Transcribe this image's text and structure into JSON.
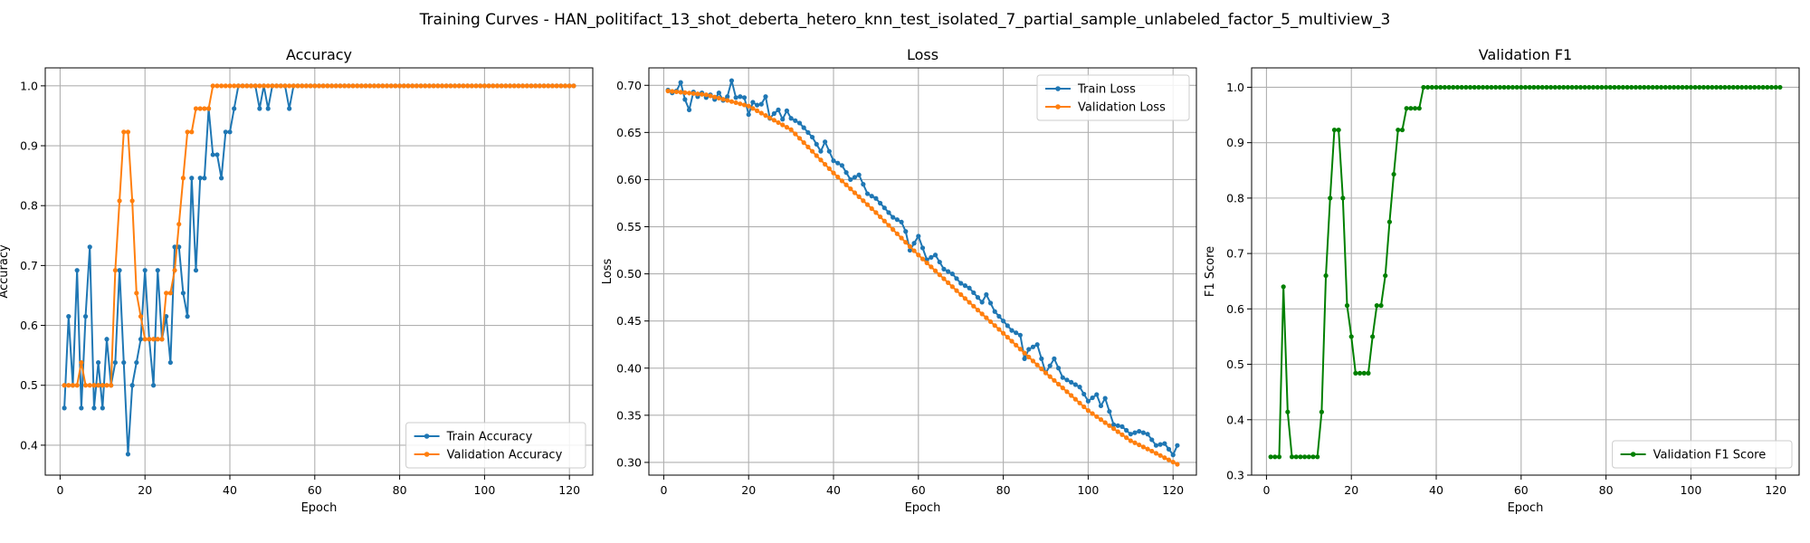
{
  "figure": {
    "title": "Training Curves - HAN_politifact_13_shot_deberta_hetero_knn_test_isolated_7_partial_sample_unlabeled_factor_5_multiview_3"
  },
  "colors": {
    "train": "#1f77b4",
    "validation": "#ff7f0e",
    "f1": "#008000",
    "grid": "#b0b0b0"
  },
  "chart_data": [
    {
      "type": "line",
      "title": "Accuracy",
      "xlabel": "Epoch",
      "ylabel": "Accuracy",
      "xlim": [
        -3.5,
        125.5
      ],
      "ylim": [
        0.35,
        1.03
      ],
      "xticks": [
        0,
        20,
        40,
        60,
        80,
        100,
        120
      ],
      "xtick_labels": [
        "0",
        "20",
        "40",
        "60",
        "80",
        "100",
        "120"
      ],
      "yticks": [
        0.4,
        0.5,
        0.6,
        0.7,
        0.8,
        0.9,
        1.0
      ],
      "ytick_labels": [
        "0.4",
        "0.5",
        "0.6",
        "0.7",
        "0.8",
        "0.9",
        "1.0"
      ],
      "grid": true,
      "legend_position": "lower-right",
      "series": [
        {
          "name": "Train Accuracy",
          "color": "#1f77b4",
          "x_start": 1,
          "x_end": 121,
          "values_head": [
            0.462,
            0.615,
            0.5,
            0.692,
            0.462,
            0.615,
            0.731,
            0.462,
            0.538,
            0.462,
            0.577,
            0.5,
            0.538,
            0.692,
            0.538,
            0.385,
            0.5,
            0.538,
            0.577,
            0.692,
            0.577,
            0.5,
            0.692,
            0.577,
            0.615,
            0.538,
            0.731,
            0.731,
            0.654,
            0.615,
            0.846,
            0.692,
            0.846,
            0.846,
            0.962,
            0.885,
            0.885,
            0.846,
            0.923,
            0.923,
            0.962,
            1.0,
            1.0,
            1.0,
            1.0,
            1.0,
            0.962,
            1.0,
            0.962,
            1.0,
            1.0,
            1.0,
            1.0,
            0.962
          ],
          "tail_value": 1.0
        },
        {
          "name": "Validation Accuracy",
          "color": "#ff7f0e",
          "x_start": 1,
          "x_end": 121,
          "values_head": [
            0.5,
            0.5,
            0.5,
            0.5,
            0.538,
            0.5,
            0.5,
            0.5,
            0.5,
            0.5,
            0.5,
            0.5,
            0.692,
            0.808,
            0.923,
            0.923,
            0.808,
            0.654,
            0.615,
            0.577,
            0.577,
            0.577,
            0.577,
            0.577,
            0.654,
            0.654,
            0.692,
            0.769,
            0.846,
            0.923,
            0.923,
            0.962,
            0.962,
            0.962,
            0.962,
            1.0
          ],
          "tail_value": 1.0
        }
      ]
    },
    {
      "type": "line",
      "title": "Loss",
      "xlabel": "Epoch",
      "ylabel": "Loss",
      "xlim": [
        -3.5,
        125.5
      ],
      "ylim": [
        0.2865,
        0.7185
      ],
      "xticks": [
        0,
        20,
        40,
        60,
        80,
        100,
        120
      ],
      "xtick_labels": [
        "0",
        "20",
        "40",
        "60",
        "80",
        "100",
        "120"
      ],
      "yticks": [
        0.3,
        0.35,
        0.4,
        0.45,
        0.5,
        0.55,
        0.6,
        0.65,
        0.7
      ],
      "ytick_labels": [
        "0.30",
        "0.35",
        "0.40",
        "0.45",
        "0.50",
        "0.55",
        "0.60",
        "0.65",
        "0.70"
      ],
      "grid": true,
      "legend_position": "upper-right",
      "series": [
        {
          "name": "Train Loss",
          "color": "#1f77b4",
          "x": [
            1,
            2,
            3,
            4,
            5,
            6,
            7,
            8,
            9,
            10,
            11,
            12,
            13,
            14,
            15,
            16,
            17,
            18,
            19,
            20,
            21,
            22,
            23,
            24,
            25,
            26,
            27,
            28,
            29,
            30,
            32,
            35,
            37,
            38,
            40,
            42,
            44,
            46,
            48,
            50,
            52,
            54,
            56,
            57,
            58,
            60,
            62,
            64,
            66,
            68,
            70,
            72,
            74,
            75,
            76,
            78,
            80,
            82,
            84,
            85,
            86,
            88,
            90,
            92,
            94,
            96,
            98,
            100,
            102,
            103,
            104,
            106,
            108,
            110,
            112,
            114,
            116,
            118,
            120,
            121
          ],
          "y": [
            0.695,
            0.692,
            0.694,
            0.703,
            0.685,
            0.674,
            0.693,
            0.688,
            0.692,
            0.687,
            0.69,
            0.685,
            0.692,
            0.684,
            0.688,
            0.705,
            0.687,
            0.688,
            0.687,
            0.669,
            0.682,
            0.679,
            0.68,
            0.688,
            0.665,
            0.67,
            0.674,
            0.664,
            0.673,
            0.665,
            0.66,
            0.645,
            0.63,
            0.64,
            0.62,
            0.615,
            0.6,
            0.605,
            0.585,
            0.58,
            0.57,
            0.56,
            0.555,
            0.545,
            0.525,
            0.54,
            0.515,
            0.52,
            0.505,
            0.5,
            0.49,
            0.485,
            0.475,
            0.47,
            0.478,
            0.46,
            0.45,
            0.44,
            0.435,
            0.41,
            0.42,
            0.425,
            0.395,
            0.41,
            0.39,
            0.385,
            0.38,
            0.365,
            0.372,
            0.36,
            0.368,
            0.34,
            0.338,
            0.33,
            0.333,
            0.33,
            0.318,
            0.32,
            0.308,
            0.318
          ]
        },
        {
          "name": "Validation Loss",
          "color": "#ff7f0e",
          "x": [
            1,
            10,
            20,
            30,
            40,
            50,
            60,
            70,
            80,
            90,
            100,
            110,
            115,
            121
          ],
          "y": [
            0.694,
            0.69,
            0.678,
            0.653,
            0.607,
            0.565,
            0.52,
            0.478,
            0.437,
            0.395,
            0.355,
            0.323,
            0.312,
            0.298
          ]
        }
      ]
    },
    {
      "type": "line",
      "title": "Validation F1",
      "xlabel": "Epoch",
      "ylabel": "F1 Score",
      "xlim": [
        -3.5,
        125.5
      ],
      "ylim": [
        0.3,
        1.035
      ],
      "xticks": [
        0,
        20,
        40,
        60,
        80,
        100,
        120
      ],
      "xtick_labels": [
        "0",
        "20",
        "40",
        "60",
        "80",
        "100",
        "120"
      ],
      "yticks": [
        0.3,
        0.4,
        0.5,
        0.6,
        0.7,
        0.8,
        0.9,
        1.0
      ],
      "ytick_labels": [
        "0.3",
        "0.4",
        "0.5",
        "0.6",
        "0.7",
        "0.8",
        "0.9",
        "1.0"
      ],
      "grid": true,
      "legend_position": "lower-right",
      "series": [
        {
          "name": "Validation F1 Score",
          "color": "#008000",
          "x_start": 1,
          "x_end": 121,
          "values_head": [
            0.333,
            0.333,
            0.333,
            0.64,
            0.414,
            0.333,
            0.333,
            0.333,
            0.333,
            0.333,
            0.333,
            0.333,
            0.414,
            0.66,
            0.8,
            0.923,
            0.923,
            0.8,
            0.606,
            0.55,
            0.484,
            0.484,
            0.484,
            0.484,
            0.55,
            0.606,
            0.606,
            0.66,
            0.757,
            0.843,
            0.923,
            0.923,
            0.962,
            0.962,
            0.962,
            0.962,
            1.0
          ],
          "tail_value": 1.0
        }
      ]
    }
  ]
}
